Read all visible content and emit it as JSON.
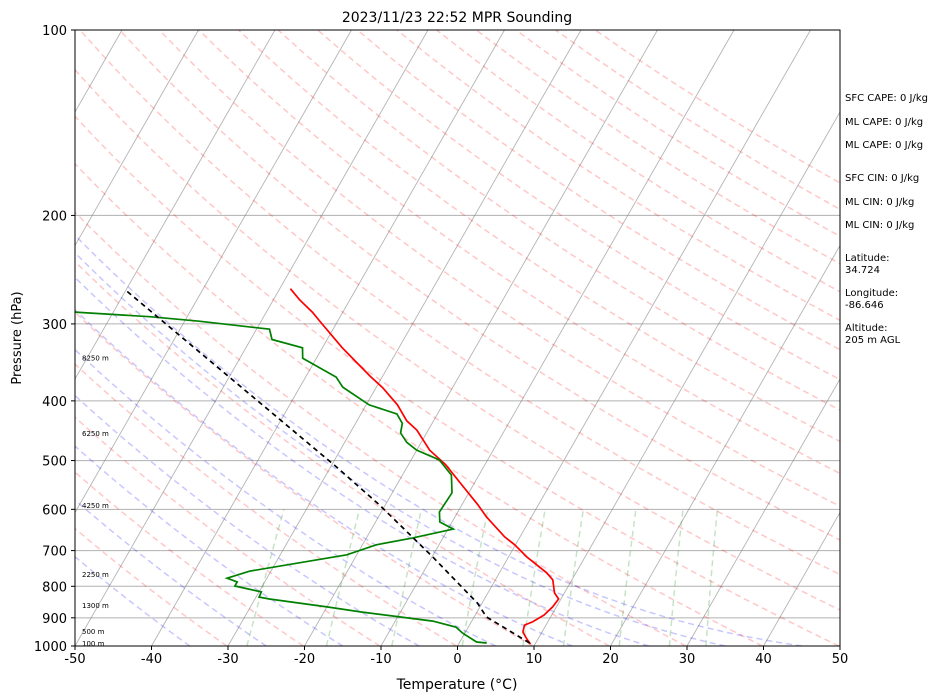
{
  "chart_data": {
    "type": "line",
    "subtype": "skew-t log-p",
    "title": "2023/11/23 22:52 MPR Sounding",
    "xlabel": "Temperature (°C)",
    "ylabel": "Pressure (hPa)",
    "xlim": [
      -50,
      50
    ],
    "ylim": [
      1000,
      100
    ],
    "xticks": [
      -50,
      -40,
      -30,
      -20,
      -10,
      0,
      10,
      20,
      30,
      40,
      50
    ],
    "yticks": [
      100,
      200,
      300,
      400,
      500,
      600,
      700,
      800,
      900,
      1000
    ],
    "grid": true,
    "series": [
      {
        "name": "Temperature",
        "color": "#ff0000",
        "style": "solid",
        "points": [
          [
            993,
            9.4
          ],
          [
            971,
            8.4
          ],
          [
            949,
            7.5
          ],
          [
            925,
            7.2
          ],
          [
            914,
            8.0
          ],
          [
            891,
            9.0
          ],
          [
            864,
            9.5
          ],
          [
            839,
            9.7
          ],
          [
            820,
            8.7
          ],
          [
            781,
            7.5
          ],
          [
            761,
            6.2
          ],
          [
            717,
            2.4
          ],
          [
            685,
            -0.1
          ],
          [
            665,
            -2.0
          ],
          [
            617,
            -5.9
          ],
          [
            590,
            -7.9
          ],
          [
            542,
            -12.0
          ],
          [
            508,
            -15.1
          ],
          [
            481,
            -18.3
          ],
          [
            446,
            -21.5
          ],
          [
            431,
            -23.5
          ],
          [
            406,
            -25.9
          ],
          [
            381,
            -29.1
          ],
          [
            365,
            -31.6
          ],
          [
            346,
            -34.5
          ],
          [
            328,
            -37.4
          ],
          [
            310,
            -40.2
          ],
          [
            299,
            -42.0
          ],
          [
            287,
            -44.0
          ],
          [
            274,
            -46.6
          ],
          [
            263,
            -48.6
          ]
        ]
      },
      {
        "name": "Dewpoint",
        "color": "#008000",
        "style": "solid",
        "points": [
          [
            989,
            3.6
          ],
          [
            985,
            2.2
          ],
          [
            953,
            -0.3
          ],
          [
            932,
            -1.6
          ],
          [
            911,
            -5.1
          ],
          [
            881,
            -15.0
          ],
          [
            864,
            -20.0
          ],
          [
            839,
            -28.1
          ],
          [
            833,
            -29.6
          ],
          [
            817,
            -29.7
          ],
          [
            799,
            -33.6
          ],
          [
            787,
            -33.6
          ],
          [
            776,
            -35.2
          ],
          [
            756,
            -32.8
          ],
          [
            711,
            -21.3
          ],
          [
            685,
            -18.2
          ],
          [
            668,
            -14.0
          ],
          [
            646,
            -9.3
          ],
          [
            629,
            -11.6
          ],
          [
            606,
            -12.4
          ],
          [
            564,
            -12.2
          ],
          [
            528,
            -13.6
          ],
          [
            499,
            -16.3
          ],
          [
            481,
            -20.0
          ],
          [
            467,
            -21.9
          ],
          [
            451,
            -23.4
          ],
          [
            435,
            -23.9
          ],
          [
            420,
            -25.3
          ],
          [
            406,
            -29.6
          ],
          [
            380,
            -34.4
          ],
          [
            366,
            -36.0
          ],
          [
            341,
            -41.8
          ],
          [
            328,
            -42.6
          ],
          [
            318,
            -47.2
          ],
          [
            306,
            -48.3
          ],
          [
            297,
            -58.1
          ],
          [
            292,
            -64.9
          ],
          [
            287,
            -75.1
          ]
        ]
      },
      {
        "name": "Parcel",
        "color": "#000000",
        "style": "dashed",
        "points": [
          [
            989,
            9.2
          ],
          [
            897,
            1.6
          ],
          [
            852,
            -0.6
          ],
          [
            717,
            -9.9
          ],
          [
            590,
            -20.8
          ],
          [
            514,
            -29.0
          ],
          [
            265,
            -69.9
          ]
        ]
      }
    ],
    "height_labels": [
      {
        "text": "8250 m",
        "pressure": 340
      },
      {
        "text": "6250 m",
        "pressure": 451
      },
      {
        "text": "4250 m",
        "pressure": 590
      },
      {
        "text": "2250 m",
        "pressure": 764
      },
      {
        "text": "1300 m",
        "pressure": 858
      },
      {
        "text": "500 m",
        "pressure": 945
      },
      {
        "text": "100 m",
        "pressure": 989
      }
    ],
    "reference_lines": {
      "isotherm_color": "#808080",
      "dry_adiabat_color": "#ff0000",
      "moist_adiabat_color": "#0000ff",
      "mixing_ratio_color": "#008000",
      "dry_adiabat_theta_K": [
        243,
        253,
        263,
        273,
        283,
        293,
        303,
        313,
        323,
        333,
        343,
        353,
        363,
        373,
        383,
        393,
        403,
        413,
        423,
        433,
        443,
        453,
        463,
        473
      ],
      "moist_adiabat_t0_C": [
        -35,
        -25,
        -15,
        -5,
        5,
        15,
        25,
        35,
        45
      ],
      "mixing_ratio_gkg": [
        0.4,
        1,
        2,
        4,
        7,
        10,
        16,
        24,
        32
      ]
    }
  },
  "stats": {
    "sfc_cape": "SFC CAPE: 0 J/kg",
    "ml_cape_1": "ML CAPE: 0 J/kg",
    "ml_cape_2": "ML CAPE: 0 J/kg",
    "sfc_cin": "SFC CIN: 0 J/kg",
    "ml_cin_1": "ML CIN: 0 J/kg",
    "ml_cin_2": "ML CIN: 0 J/kg",
    "latitude_label": "Latitude:",
    "latitude_value": "34.724",
    "longitude_label": "Longitude:",
    "longitude_value": "-86.646",
    "altitude_label": "Altitude:",
    "altitude_value": "205 m AGL"
  }
}
